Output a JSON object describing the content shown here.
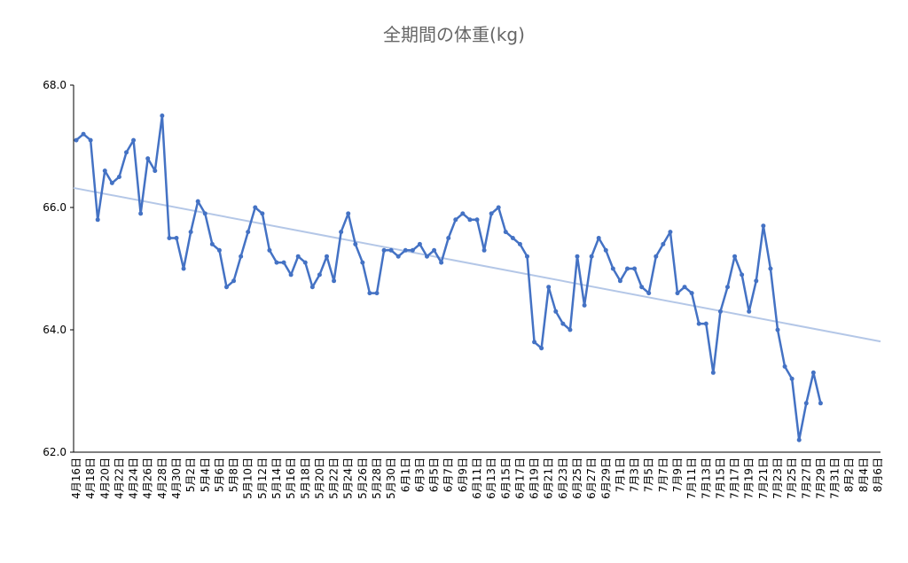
{
  "chart_data": {
    "type": "line",
    "title": "全期間の体重(kg)",
    "categories": [
      "4月16日",
      null,
      "4月18日",
      null,
      "4月20日",
      null,
      "4月22日",
      null,
      "4月24日",
      null,
      "4月26日",
      null,
      "4月28日",
      null,
      "4月30日",
      null,
      "5月2日",
      null,
      "5月4日",
      null,
      "5月6日",
      null,
      "5月8日",
      null,
      "5月10日",
      null,
      "5月12日",
      null,
      "5月14日",
      null,
      "5月16日",
      null,
      "5月18日",
      null,
      "5月20日",
      null,
      "5月22日",
      null,
      "5月24日",
      null,
      "5月26日",
      null,
      "5月28日",
      null,
      "5月30日",
      null,
      "6月1日",
      null,
      "6月3日",
      null,
      "6月5日",
      null,
      "6月7日",
      null,
      "6月9日",
      null,
      "6月11日",
      null,
      "6月13日",
      null,
      "6月15日",
      null,
      "6月17日",
      null,
      "6月19日",
      null,
      "6月21日",
      null,
      "6月23日",
      null,
      "6月25日",
      null,
      "6月27日",
      null,
      "6月29日",
      null,
      "7月1日",
      null,
      "7月3日",
      null,
      "7月5日",
      null,
      "7月7日",
      null,
      "7月9日",
      null,
      "7月11日",
      null,
      "7月13日",
      null,
      "7月15日",
      null,
      "7月17日",
      null,
      "7月19日",
      null,
      "7月21日",
      null,
      "7月23日",
      null,
      "7月25日",
      null,
      "7月27日",
      null,
      "7月29日",
      null,
      "7月31日",
      null,
      "8月2日",
      null,
      "8月4日",
      null,
      "8月6日"
    ],
    "values": [
      67.1,
      67.2,
      67.1,
      65.8,
      66.6,
      66.4,
      66.5,
      66.9,
      67.1,
      65.9,
      66.8,
      66.6,
      67.5,
      65.5,
      65.5,
      65.0,
      65.6,
      66.1,
      65.9,
      65.4,
      65.3,
      64.7,
      64.8,
      65.2,
      65.6,
      66.0,
      65.9,
      65.3,
      65.1,
      65.1,
      64.9,
      65.2,
      65.1,
      64.7,
      64.9,
      65.2,
      64.8,
      65.6,
      65.9,
      65.4,
      65.1,
      64.6,
      64.6,
      65.3,
      65.3,
      65.2,
      65.3,
      65.3,
      65.4,
      65.2,
      65.3,
      65.1,
      65.5,
      65.8,
      65.9,
      65.8,
      65.8,
      65.3,
      65.9,
      66.0,
      65.6,
      65.5,
      65.4,
      65.2,
      63.8,
      63.7,
      64.7,
      64.3,
      64.1,
      64.0,
      65.2,
      64.4,
      65.2,
      65.5,
      65.3,
      65.0,
      64.8,
      65.0,
      65.0,
      64.7,
      64.6,
      65.2,
      65.4,
      65.6,
      64.6,
      64.7,
      64.6,
      64.1,
      64.1,
      63.3,
      64.3,
      64.7,
      65.2,
      64.9,
      64.3,
      64.8,
      65.7,
      65.0,
      64.0,
      63.4,
      63.2,
      62.2,
      62.8,
      63.3,
      62.8,
      null,
      null,
      null,
      null,
      null,
      null,
      null,
      null
    ],
    "color": "#4472c4",
    "trendline": {
      "color": "#b4c7e7",
      "start": 66.32,
      "end": 63.81
    },
    "ylim": [
      62,
      68
    ],
    "yticks": [
      {
        "value": 62,
        "label": "62.0"
      },
      {
        "value": 64,
        "label": "64.0"
      },
      {
        "value": 66,
        "label": "66.0"
      },
      {
        "value": 68,
        "label": "68.0"
      }
    ]
  }
}
